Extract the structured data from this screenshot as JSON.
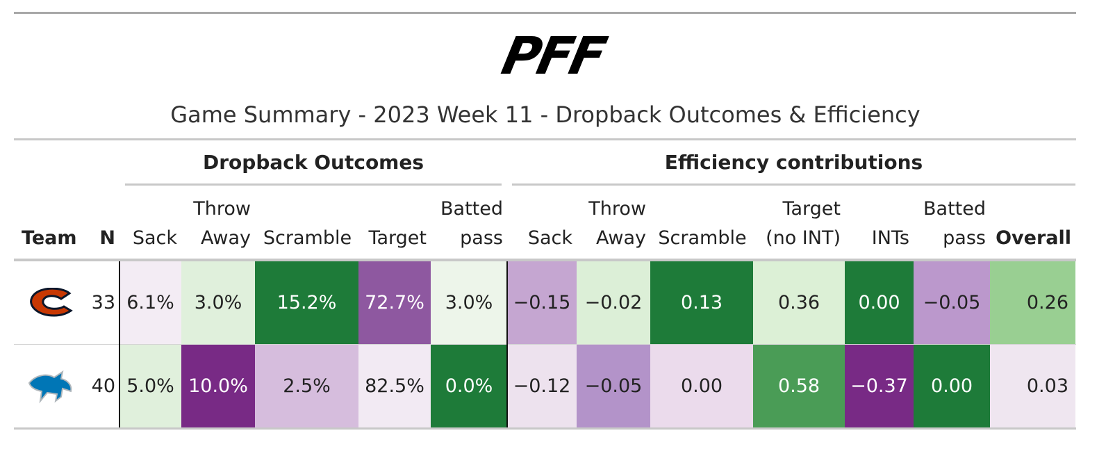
{
  "header": {
    "logo": "PFF",
    "title": "Game Summary - 2023 Week 11 - Dropback Outcomes & Efficiency"
  },
  "table": {
    "spanners": [
      "Dropback Outcomes",
      "Efficiency contributions"
    ],
    "columns": [
      "Team",
      "N",
      "Sack",
      "Throw\nAway",
      "Scramble",
      "Target",
      "Batted\npass",
      "Sack",
      "Throw\nAway",
      "Scramble",
      "Target\n(no INT)",
      "INTs",
      "Batted\npass",
      "Overall"
    ],
    "rows": [
      {
        "n": "33",
        "cells": [
          "6.1%",
          "3.0%",
          "15.2%",
          "72.7%",
          "3.0%",
          "−0.15",
          "−0.02",
          "0.13",
          "0.36",
          "0.00",
          "−0.05",
          "0.26"
        ],
        "fills": [
          "#f3ecf4",
          "#e0f0dc",
          "#1e7b39",
          "#8e58a0",
          "#edf5ea",
          "#c5a6d1",
          "#dcefd7",
          "#1e7b39",
          "#dcf0d6",
          "#1e7b39",
          "#bb98cc",
          "#99cf92"
        ]
      },
      {
        "n": "40",
        "cells": [
          "5.0%",
          "10.0%",
          "2.5%",
          "82.5%",
          "0.0%",
          "−0.12",
          "−0.05",
          "0.00",
          "0.58",
          "−0.37",
          "0.00",
          "0.03"
        ],
        "fills": [
          "#e0f0dc",
          "#782a85",
          "#d6bddd",
          "#f2eaf3",
          "#1e7b39",
          "#ede2ee",
          "#b393c9",
          "#ebdbec",
          "#4a9c56",
          "#782a85",
          "#1e7b39",
          "#efe6f0"
        ]
      }
    ]
  }
}
